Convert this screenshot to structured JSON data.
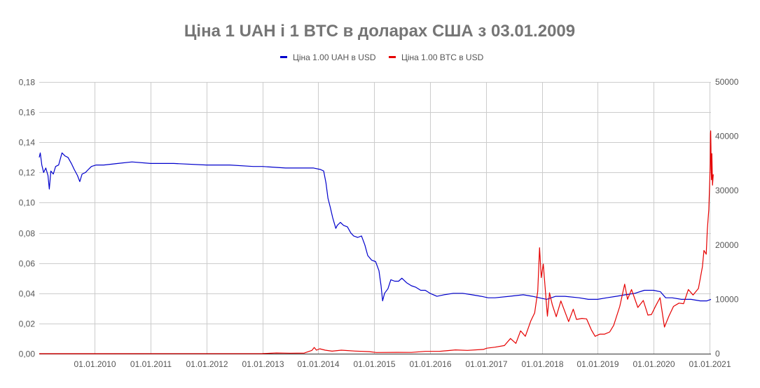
{
  "chart_data": {
    "type": "line",
    "title": "Ціна 1 UAH і 1 BTC в доларах США з 03.01.2009",
    "xlabel": "",
    "ylabel": "",
    "y_left": {
      "lim": [
        0,
        0.18
      ],
      "ticks": [
        0,
        0.02,
        0.04,
        0.06,
        0.08,
        0.1,
        0.12,
        0.14,
        0.16,
        0.18
      ],
      "tick_labels": [
        "0,00",
        "0,02",
        "0,04",
        "0,06",
        "0,08",
        "0,10",
        "0,12",
        "0,14",
        "0,16",
        "0,18"
      ]
    },
    "y_right": {
      "lim": [
        0,
        50000
      ],
      "ticks": [
        0,
        10000,
        20000,
        30000,
        40000,
        50000
      ],
      "tick_labels": [
        "0",
        "10000",
        "20000",
        "30000",
        "40000",
        "50000"
      ]
    },
    "x_axis": {
      "lim": [
        "2009-01-03",
        "2021-01-10"
      ],
      "ticks": [
        "2010-01-01",
        "2011-01-01",
        "2012-01-01",
        "2013-01-01",
        "2014-01-01",
        "2015-01-01",
        "2016-01-01",
        "2017-01-01",
        "2018-01-01",
        "2019-01-01",
        "2020-01-01",
        "2021-01-01"
      ],
      "tick_labels": [
        "01.01.2010",
        "01.01.2011",
        "01.01.2012",
        "01.01.2013",
        "01.01.2014",
        "01.01.2015",
        "01.01.2016",
        "01.01.2017",
        "01.01.2018",
        "01.01.2019",
        "01.01.2020",
        "01.01.2021"
      ]
    },
    "grid": true,
    "legend_position": "top",
    "series": [
      {
        "name": "Ціна 1.00 UAH в USD",
        "axis": "left",
        "color": "#0000cc",
        "points": [
          [
            "2009-01-03",
            0.13
          ],
          [
            "2009-01-10",
            0.133
          ],
          [
            "2009-01-20",
            0.125
          ],
          [
            "2009-02-01",
            0.12
          ],
          [
            "2009-02-15",
            0.123
          ],
          [
            "2009-03-01",
            0.118
          ],
          [
            "2009-03-10",
            0.109
          ],
          [
            "2009-03-20",
            0.121
          ],
          [
            "2009-04-05",
            0.119
          ],
          [
            "2009-04-20",
            0.124
          ],
          [
            "2009-05-10",
            0.125
          ],
          [
            "2009-06-01",
            0.133
          ],
          [
            "2009-06-20",
            0.131
          ],
          [
            "2009-07-10",
            0.13
          ],
          [
            "2009-08-01",
            0.126
          ],
          [
            "2009-08-20",
            0.122
          ],
          [
            "2009-09-10",
            0.118
          ],
          [
            "2009-09-25",
            0.114
          ],
          [
            "2009-10-10",
            0.119
          ],
          [
            "2009-11-01",
            0.12
          ],
          [
            "2009-11-20",
            0.122
          ],
          [
            "2009-12-10",
            0.124
          ],
          [
            "2010-01-10",
            0.125
          ],
          [
            "2010-03-01",
            0.125
          ],
          [
            "2010-06-01",
            0.126
          ],
          [
            "2010-09-01",
            0.127
          ],
          [
            "2011-01-01",
            0.126
          ],
          [
            "2011-06-01",
            0.126
          ],
          [
            "2012-01-01",
            0.125
          ],
          [
            "2012-06-01",
            0.125
          ],
          [
            "2012-11-01",
            0.124
          ],
          [
            "2013-01-01",
            0.124
          ],
          [
            "2013-06-01",
            0.123
          ],
          [
            "2013-12-01",
            0.123
          ],
          [
            "2014-01-15",
            0.122
          ],
          [
            "2014-02-05",
            0.121
          ],
          [
            "2014-02-20",
            0.113
          ],
          [
            "2014-03-05",
            0.103
          ],
          [
            "2014-03-20",
            0.097
          ],
          [
            "2014-04-05",
            0.09
          ],
          [
            "2014-04-25",
            0.083
          ],
          [
            "2014-05-05",
            0.085
          ],
          [
            "2014-05-25",
            0.087
          ],
          [
            "2014-06-15",
            0.085
          ],
          [
            "2014-07-10",
            0.084
          ],
          [
            "2014-08-01",
            0.08
          ],
          [
            "2014-08-20",
            0.078
          ],
          [
            "2014-09-15",
            0.077
          ],
          [
            "2014-10-10",
            0.078
          ],
          [
            "2014-11-01",
            0.072
          ],
          [
            "2014-11-20",
            0.065
          ],
          [
            "2014-12-15",
            0.062
          ],
          [
            "2015-01-10",
            0.061
          ],
          [
            "2015-02-01",
            0.055
          ],
          [
            "2015-02-15",
            0.045
          ],
          [
            "2015-02-25",
            0.035
          ],
          [
            "2015-03-10",
            0.04
          ],
          [
            "2015-04-01",
            0.043
          ],
          [
            "2015-04-20",
            0.049
          ],
          [
            "2015-05-15",
            0.048
          ],
          [
            "2015-06-10",
            0.048
          ],
          [
            "2015-07-01",
            0.05
          ],
          [
            "2015-08-01",
            0.047
          ],
          [
            "2015-09-01",
            0.045
          ],
          [
            "2015-10-01",
            0.044
          ],
          [
            "2015-11-01",
            0.042
          ],
          [
            "2015-12-01",
            0.042
          ],
          [
            "2016-01-01",
            0.04
          ],
          [
            "2016-02-15",
            0.038
          ],
          [
            "2016-04-01",
            0.039
          ],
          [
            "2016-06-01",
            0.04
          ],
          [
            "2016-08-01",
            0.04
          ],
          [
            "2016-10-01",
            0.039
          ],
          [
            "2016-12-01",
            0.038
          ],
          [
            "2017-01-15",
            0.037
          ],
          [
            "2017-03-01",
            0.037
          ],
          [
            "2017-06-01",
            0.038
          ],
          [
            "2017-09-01",
            0.039
          ],
          [
            "2017-11-01",
            0.038
          ],
          [
            "2017-12-15",
            0.037
          ],
          [
            "2018-02-01",
            0.036
          ],
          [
            "2018-04-01",
            0.038
          ],
          [
            "2018-06-01",
            0.038
          ],
          [
            "2018-09-01",
            0.037
          ],
          [
            "2018-11-01",
            0.036
          ],
          [
            "2019-01-01",
            0.036
          ],
          [
            "2019-03-01",
            0.037
          ],
          [
            "2019-05-01",
            0.038
          ],
          [
            "2019-07-01",
            0.039
          ],
          [
            "2019-09-01",
            0.04
          ],
          [
            "2019-11-01",
            0.042
          ],
          [
            "2020-01-01",
            0.042
          ],
          [
            "2020-02-15",
            0.041
          ],
          [
            "2020-03-20",
            0.037
          ],
          [
            "2020-05-01",
            0.037
          ],
          [
            "2020-07-01",
            0.036
          ],
          [
            "2020-09-01",
            0.036
          ],
          [
            "2020-11-01",
            0.035
          ],
          [
            "2020-12-15",
            0.035
          ],
          [
            "2021-01-10",
            0.036
          ]
        ]
      },
      {
        "name": "Ціна 1.00 BTC в USD",
        "axis": "right",
        "color": "#e60000",
        "points": [
          [
            "2009-01-03",
            0
          ],
          [
            "2013-01-01",
            15
          ],
          [
            "2013-04-01",
            130
          ],
          [
            "2013-07-01",
            90
          ],
          [
            "2013-10-01",
            120
          ],
          [
            "2013-11-20",
            600
          ],
          [
            "2013-12-05",
            1150
          ],
          [
            "2013-12-20",
            650
          ],
          [
            "2014-01-10",
            900
          ],
          [
            "2014-02-15",
            650
          ],
          [
            "2014-04-01",
            460
          ],
          [
            "2014-06-01",
            640
          ],
          [
            "2014-09-01",
            480
          ],
          [
            "2014-12-01",
            380
          ],
          [
            "2015-01-15",
            220
          ],
          [
            "2015-06-01",
            240
          ],
          [
            "2015-09-01",
            230
          ],
          [
            "2015-12-01",
            430
          ],
          [
            "2016-03-01",
            420
          ],
          [
            "2016-06-15",
            700
          ],
          [
            "2016-09-01",
            600
          ],
          [
            "2016-12-15",
            780
          ],
          [
            "2017-01-05",
            1000
          ],
          [
            "2017-03-01",
            1200
          ],
          [
            "2017-05-01",
            1500
          ],
          [
            "2017-06-10",
            2800
          ],
          [
            "2017-07-15",
            1900
          ],
          [
            "2017-08-15",
            4200
          ],
          [
            "2017-09-15",
            3200
          ],
          [
            "2017-10-20",
            6000
          ],
          [
            "2017-11-15",
            7500
          ],
          [
            "2017-12-05",
            11500
          ],
          [
            "2017-12-17",
            19500
          ],
          [
            "2017-12-28",
            14000
          ],
          [
            "2018-01-10",
            16500
          ],
          [
            "2018-02-06",
            6900
          ],
          [
            "2018-02-20",
            11200
          ],
          [
            "2018-03-10",
            9000
          ],
          [
            "2018-04-05",
            6800
          ],
          [
            "2018-05-05",
            9700
          ],
          [
            "2018-06-25",
            5900
          ],
          [
            "2018-07-25",
            8200
          ],
          [
            "2018-08-15",
            6300
          ],
          [
            "2018-09-20",
            6500
          ],
          [
            "2018-10-20",
            6400
          ],
          [
            "2018-11-20",
            4400
          ],
          [
            "2018-12-15",
            3200
          ],
          [
            "2019-01-15",
            3600
          ],
          [
            "2019-02-15",
            3600
          ],
          [
            "2019-03-20",
            4000
          ],
          [
            "2019-04-15",
            5200
          ],
          [
            "2019-05-25",
            8700
          ],
          [
            "2019-06-26",
            12800
          ],
          [
            "2019-07-15",
            10000
          ],
          [
            "2019-08-10",
            11800
          ],
          [
            "2019-09-20",
            8500
          ],
          [
            "2019-10-26",
            9800
          ],
          [
            "2019-11-25",
            7100
          ],
          [
            "2019-12-18",
            7200
          ],
          [
            "2020-01-15",
            8800
          ],
          [
            "2020-02-12",
            10300
          ],
          [
            "2020-03-12",
            4900
          ],
          [
            "2020-04-10",
            6900
          ],
          [
            "2020-05-10",
            8700
          ],
          [
            "2020-06-15",
            9300
          ],
          [
            "2020-07-15",
            9200
          ],
          [
            "2020-08-15",
            11800
          ],
          [
            "2020-09-15",
            10800
          ],
          [
            "2020-10-20",
            12000
          ],
          [
            "2020-11-15",
            16000
          ],
          [
            "2020-11-25",
            19000
          ],
          [
            "2020-12-10",
            18300
          ],
          [
            "2020-12-17",
            22800
          ],
          [
            "2020-12-27",
            26500
          ],
          [
            "2021-01-02",
            32000
          ],
          [
            "2021-01-05",
            35000
          ],
          [
            "2021-01-07",
            40500
          ],
          [
            "2021-01-08",
            41000
          ],
          [
            "2021-01-10",
            38000
          ],
          [
            "2021-01-11",
            34000
          ],
          [
            "2021-01-13",
            32000
          ],
          [
            "2021-01-16",
            36800
          ],
          [
            "2021-01-20",
            31000
          ],
          [
            "2021-01-25",
            33000
          ]
        ]
      }
    ]
  }
}
